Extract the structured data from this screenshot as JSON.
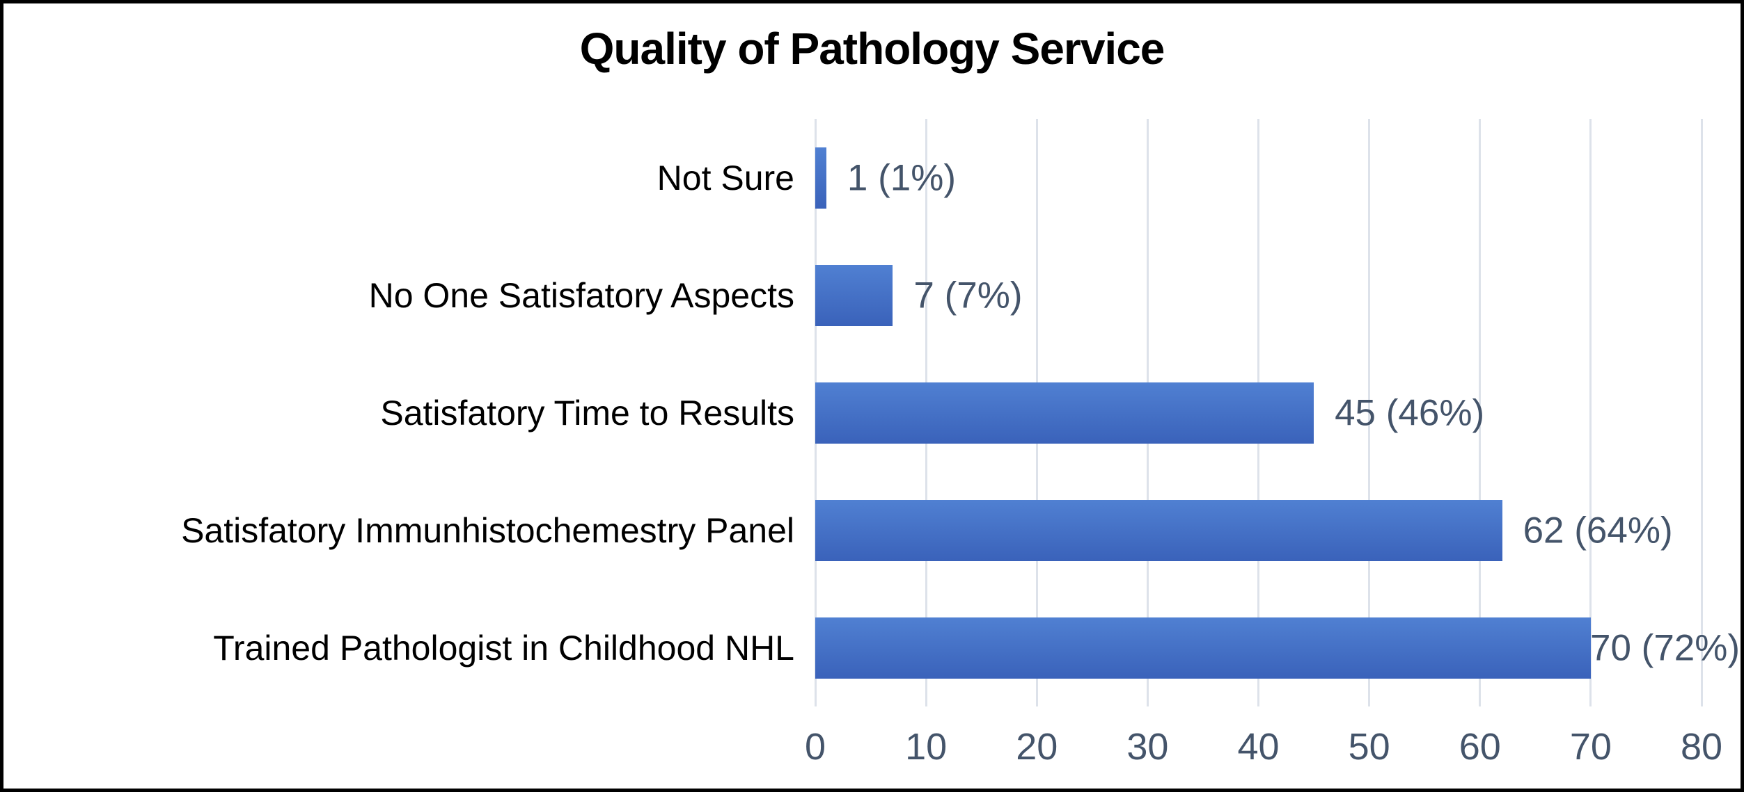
{
  "chart_data": {
    "type": "bar",
    "orientation": "horizontal",
    "title": "Quality of Pathology Service",
    "categories": [
      "Not Sure",
      "No One Satisfatory Aspects",
      "Satisfatory Time to Results",
      "Satisfatory Immunhistochemestry Panel",
      "Trained Pathologist in Childhood NHL"
    ],
    "values": [
      1,
      7,
      45,
      62,
      70
    ],
    "data_labels": [
      "1 (1%)",
      "7 (7%)",
      "45 (46%)",
      "62 (64%)",
      "70 (72%)"
    ],
    "x_ticks": [
      0,
      10,
      20,
      30,
      40,
      50,
      60,
      70,
      80
    ],
    "xlim": [
      0,
      80
    ],
    "xlabel": "",
    "ylabel": "",
    "grid": "vertical-only",
    "legend": "none",
    "colors": {
      "bar_gradient_top": "#5080d2",
      "bar_gradient_bottom": "#3a62ba",
      "axis_text": "#44546A",
      "gridline": "#dde2ea",
      "title_text": "#000000",
      "category_text": "#000000",
      "frame_border": "#000000",
      "background": "#ffffff"
    }
  }
}
